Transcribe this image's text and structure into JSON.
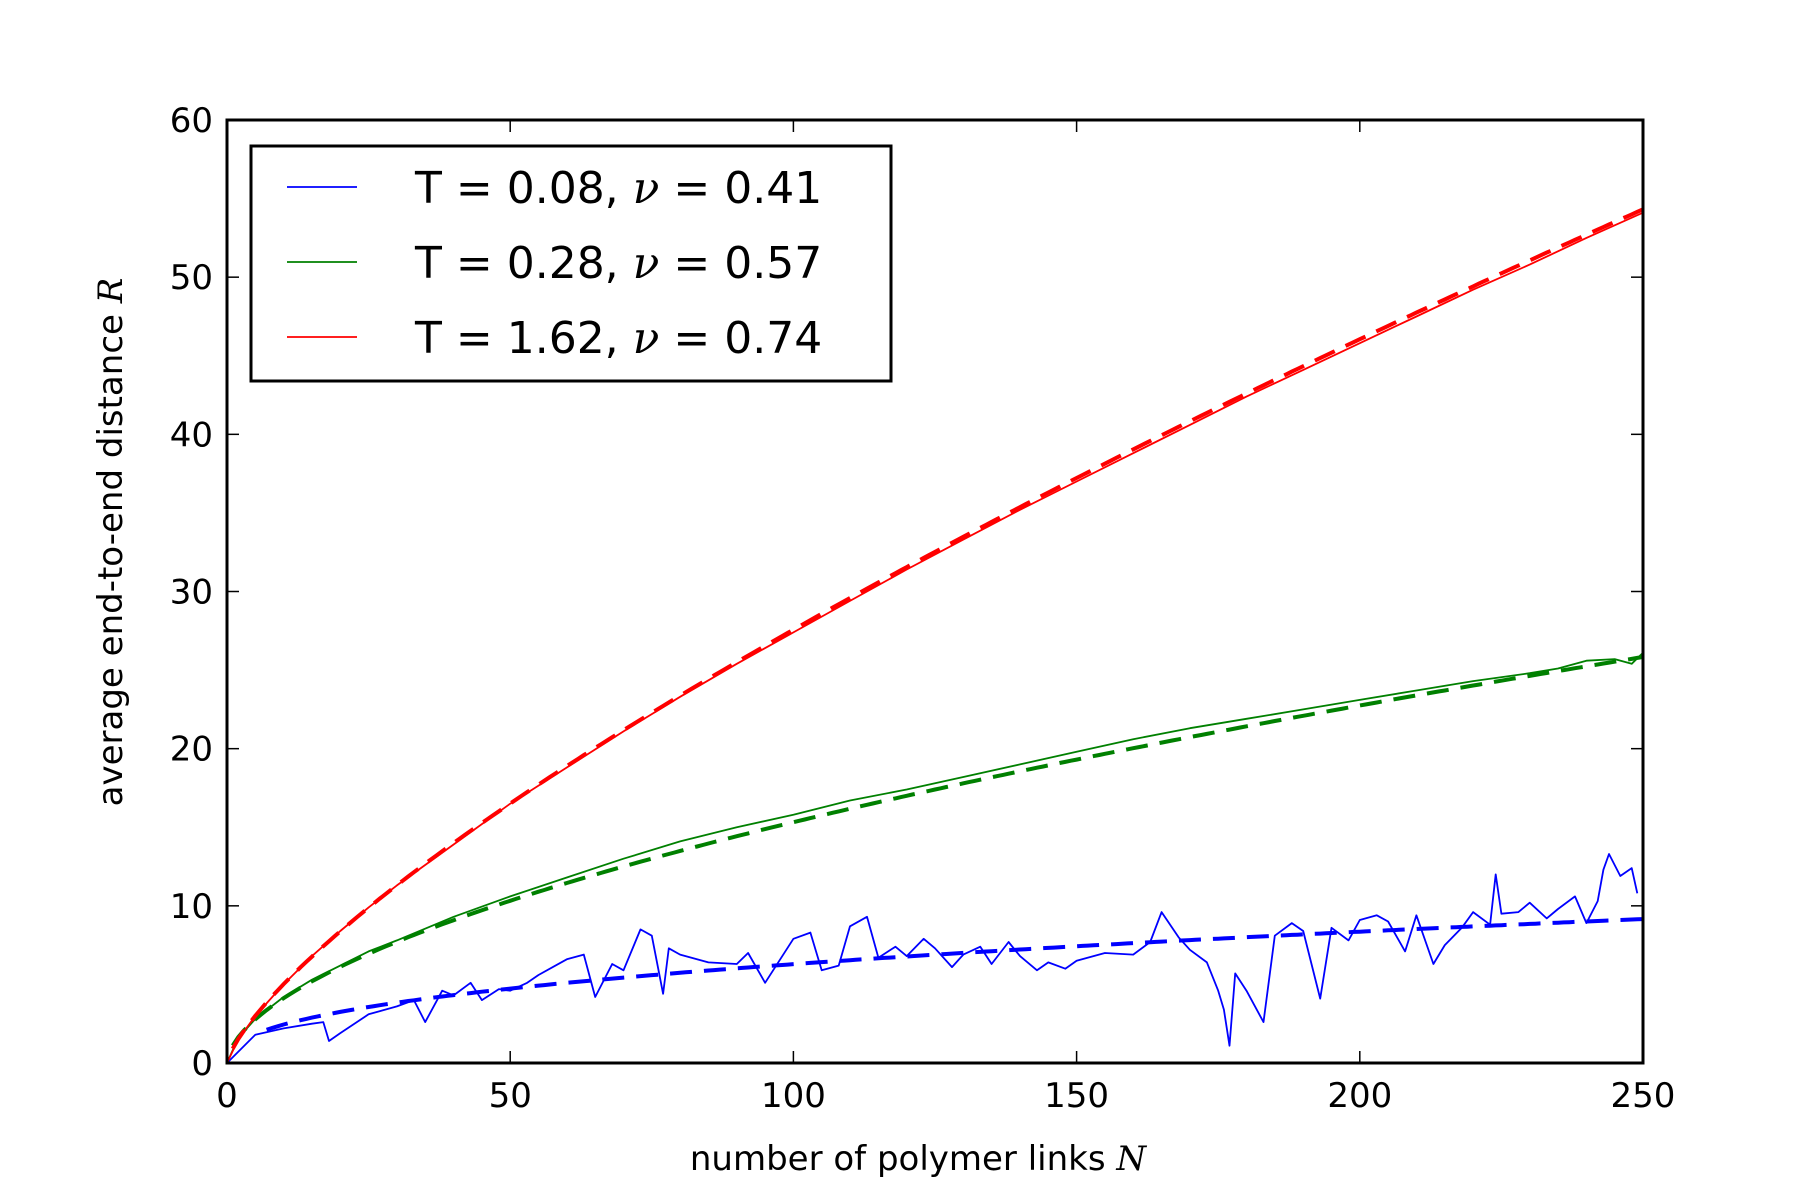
{
  "chart_data": {
    "type": "line",
    "xlabel_text": "number of polymer links ",
    "xlabel_var": "N",
    "ylabel_text": "average end-to-end distance ",
    "ylabel_var": "R",
    "xlim": [
      0,
      250
    ],
    "ylim": [
      0,
      60
    ],
    "xticks": [
      "0",
      "50",
      "100",
      "150",
      "200",
      "250"
    ],
    "yticks": [
      "0",
      "10",
      "20",
      "30",
      "40",
      "50",
      "60"
    ],
    "grid": false,
    "legend_position": "upper-left",
    "series": [
      {
        "name_prefix": "T = 0.08, ",
        "name_var": "ν",
        "name_suffix": " = 0.41",
        "color": "#0000ff",
        "exponent": 0.41,
        "fit_coef": 0.952,
        "fit_start": 7,
        "x": [
          0,
          5,
          10,
          15,
          17,
          18,
          20,
          25,
          30,
          33,
          35,
          38,
          40,
          43,
          45,
          48,
          50,
          53,
          55,
          58,
          60,
          63,
          65,
          68,
          70,
          73,
          75,
          77,
          78,
          80,
          85,
          90,
          92,
          95,
          100,
          103,
          105,
          108,
          110,
          113,
          115,
          118,
          120,
          123,
          125,
          128,
          130,
          133,
          135,
          138,
          140,
          143,
          145,
          148,
          150,
          155,
          160,
          163,
          165,
          168,
          170,
          173,
          175,
          176,
          177,
          178,
          180,
          183,
          185,
          188,
          190,
          193,
          195,
          198,
          200,
          203,
          205,
          208,
          210,
          213,
          215,
          218,
          220,
          223,
          224,
          225,
          228,
          230,
          233,
          235,
          238,
          240,
          242,
          243,
          244,
          246,
          248,
          249
        ],
        "y": [
          0,
          1.8,
          2.2,
          2.5,
          2.6,
          1.4,
          1.9,
          3.1,
          3.6,
          4.0,
          2.6,
          4.6,
          4.3,
          5.1,
          4.0,
          4.7,
          4.6,
          5.1,
          5.6,
          6.2,
          6.6,
          6.9,
          4.2,
          6.3,
          5.9,
          8.5,
          8.1,
          4.4,
          7.3,
          6.9,
          6.4,
          6.3,
          7.0,
          5.1,
          7.9,
          8.3,
          5.9,
          6.2,
          8.7,
          9.3,
          6.7,
          7.4,
          6.8,
          7.9,
          7.3,
          6.1,
          6.9,
          7.4,
          6.3,
          7.7,
          6.8,
          5.9,
          6.4,
          6.0,
          6.5,
          7.0,
          6.9,
          7.7,
          9.6,
          8.0,
          7.2,
          6.4,
          4.6,
          3.4,
          1.1,
          5.7,
          4.6,
          2.6,
          8.1,
          8.9,
          8.4,
          4.1,
          8.6,
          7.8,
          9.1,
          9.4,
          9.0,
          7.1,
          9.4,
          6.3,
          7.5,
          8.6,
          9.6,
          8.8,
          12.0,
          9.5,
          9.6,
          10.2,
          9.2,
          9.8,
          10.6,
          8.9,
          10.3,
          12.3,
          13.3,
          11.9,
          12.4,
          10.8
        ]
      },
      {
        "name_prefix": "T = 0.28, ",
        "name_var": "ν",
        "name_suffix": " = 0.57",
        "color": "#008000",
        "exponent": 0.57,
        "fit_coef": 1.11,
        "fit_start": 1,
        "x": [
          0,
          2,
          5,
          10,
          15,
          20,
          25,
          30,
          40,
          50,
          60,
          70,
          80,
          90,
          100,
          110,
          120,
          130,
          140,
          150,
          160,
          170,
          180,
          190,
          200,
          210,
          220,
          230,
          235,
          240,
          245,
          248,
          250
        ],
        "y": [
          0,
          1.6,
          2.8,
          4.2,
          5.3,
          6.2,
          7.1,
          7.8,
          9.3,
          10.6,
          11.8,
          13.0,
          14.1,
          15.0,
          15.8,
          16.7,
          17.4,
          18.2,
          19.0,
          19.8,
          20.6,
          21.3,
          21.9,
          22.5,
          23.1,
          23.7,
          24.3,
          24.8,
          25.1,
          25.6,
          25.7,
          25.4,
          26.1
        ]
      },
      {
        "name_prefix": "T = 1.62, ",
        "name_var": "ν",
        "name_suffix": " = 0.74",
        "color": "#ff0000",
        "exponent": 0.74,
        "fit_coef": 0.913,
        "fit_start": 1,
        "x": [
          0,
          2,
          5,
          10,
          15,
          20,
          25,
          30,
          40,
          50,
          60,
          70,
          80,
          90,
          100,
          110,
          120,
          130,
          140,
          150,
          160,
          170,
          180,
          190,
          200,
          210,
          220,
          230,
          240,
          250
        ],
        "y": [
          0,
          1.5,
          3.0,
          5.0,
          6.8,
          8.4,
          9.9,
          11.3,
          13.9,
          16.5,
          18.8,
          21.1,
          23.3,
          25.4,
          27.4,
          29.4,
          31.4,
          33.3,
          35.2,
          37.0,
          38.8,
          40.6,
          42.4,
          44.1,
          45.8,
          47.5,
          49.2,
          50.8,
          52.5,
          54.1
        ]
      }
    ]
  }
}
